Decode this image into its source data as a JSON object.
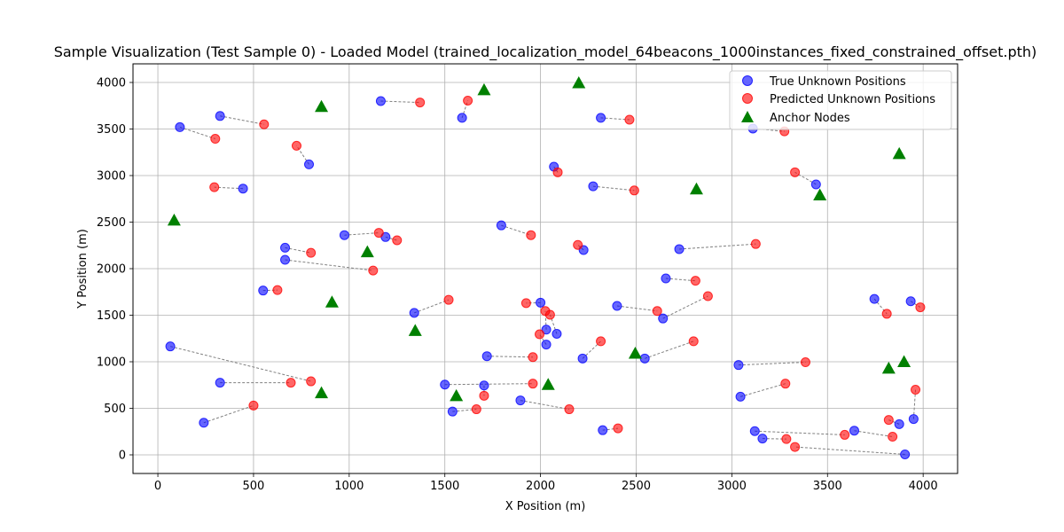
{
  "chart_data": {
    "type": "scatter",
    "title": "Sample Visualization (Test Sample 0) - Loaded Model (trained_localization_model_64beacons_1000instances_fixed_constrained_offset.pth)",
    "xlabel": "X Position (m)",
    "ylabel": "Y Position (m)",
    "xlim": [
      -130,
      4180
    ],
    "ylim": [
      -200,
      4200
    ],
    "xticks": [
      0,
      500,
      1000,
      1500,
      2000,
      2500,
      3000,
      3500,
      4000
    ],
    "yticks": [
      0,
      500,
      1000,
      1500,
      2000,
      2500,
      3000,
      3500,
      4000
    ],
    "grid": true,
    "legend_position": "top-right",
    "colors": {
      "true": "#0000ff",
      "pred": "#ff0000",
      "anchor": "#008000",
      "connector": "#808080"
    },
    "series": [
      {
        "name": "True Unknown Positions",
        "marker": "circle",
        "points": [
          [
            325,
            3640
          ],
          [
            115,
            3520
          ],
          [
            790,
            3120
          ],
          [
            445,
            2860
          ],
          [
            975,
            2360
          ],
          [
            1190,
            2340
          ],
          [
            665,
            2225
          ],
          [
            665,
            2095
          ],
          [
            550,
            1765
          ],
          [
            1340,
            1525
          ],
          [
            65,
            1165
          ],
          [
            325,
            775
          ],
          [
            240,
            345
          ],
          [
            1165,
            3800
          ],
          [
            1590,
            3620
          ],
          [
            2070,
            3095
          ],
          [
            2275,
            2885
          ],
          [
            2315,
            3620
          ],
          [
            1795,
            2465
          ],
          [
            2225,
            2200
          ],
          [
            2725,
            2210
          ],
          [
            2655,
            1895
          ],
          [
            2400,
            1600
          ],
          [
            2640,
            1465
          ],
          [
            2000,
            1635
          ],
          [
            2030,
            1345
          ],
          [
            2085,
            1300
          ],
          [
            2030,
            1185
          ],
          [
            1720,
            1060
          ],
          [
            2220,
            1035
          ],
          [
            2545,
            1035
          ],
          [
            1500,
            755
          ],
          [
            1705,
            745
          ],
          [
            1540,
            465
          ],
          [
            1895,
            585
          ],
          [
            2325,
            265
          ],
          [
            3035,
            965
          ],
          [
            3045,
            625
          ],
          [
            3110,
            3505
          ],
          [
            3440,
            2905
          ],
          [
            3745,
            1675
          ],
          [
            3935,
            1650
          ],
          [
            3950,
            385
          ],
          [
            3875,
            330
          ],
          [
            3640,
            260
          ],
          [
            3120,
            255
          ],
          [
            3160,
            175
          ],
          [
            3905,
            5
          ]
        ]
      },
      {
        "name": "Predicted Unknown Positions",
        "marker": "circle",
        "points": [
          [
            555,
            3550
          ],
          [
            300,
            3395
          ],
          [
            725,
            3320
          ],
          [
            295,
            2875
          ],
          [
            1155,
            2385
          ],
          [
            1250,
            2305
          ],
          [
            800,
            2170
          ],
          [
            1125,
            1980
          ],
          [
            625,
            1770
          ],
          [
            1520,
            1665
          ],
          [
            800,
            790
          ],
          [
            695,
            775
          ],
          [
            500,
            530
          ],
          [
            1370,
            3785
          ],
          [
            1620,
            3805
          ],
          [
            2090,
            3035
          ],
          [
            2490,
            2840
          ],
          [
            2465,
            3600
          ],
          [
            1950,
            2360
          ],
          [
            2195,
            2255
          ],
          [
            3125,
            2265
          ],
          [
            2810,
            1870
          ],
          [
            2610,
            1545
          ],
          [
            2875,
            1705
          ],
          [
            1925,
            1630
          ],
          [
            2025,
            1545
          ],
          [
            2050,
            1505
          ],
          [
            1995,
            1295
          ],
          [
            1960,
            1050
          ],
          [
            2315,
            1220
          ],
          [
            2800,
            1220
          ],
          [
            1960,
            765
          ],
          [
            1705,
            635
          ],
          [
            1665,
            490
          ],
          [
            2150,
            490
          ],
          [
            2405,
            285
          ],
          [
            3385,
            995
          ],
          [
            3280,
            765
          ],
          [
            3275,
            3475
          ],
          [
            3330,
            3035
          ],
          [
            3810,
            1515
          ],
          [
            3985,
            1585
          ],
          [
            3960,
            700
          ],
          [
            3820,
            375
          ],
          [
            3840,
            195
          ],
          [
            3590,
            215
          ],
          [
            3285,
            170
          ],
          [
            3330,
            85
          ]
        ]
      },
      {
        "name": "Anchor Nodes",
        "marker": "triangle",
        "points": [
          [
            855,
            3740
          ],
          [
            1705,
            3920
          ],
          [
            2200,
            3995
          ],
          [
            2815,
            2855
          ],
          [
            3460,
            2790
          ],
          [
            3875,
            3235
          ],
          [
            85,
            2520
          ],
          [
            1095,
            2180
          ],
          [
            910,
            1640
          ],
          [
            1345,
            1335
          ],
          [
            2495,
            1090
          ],
          [
            2040,
            755
          ],
          [
            1560,
            635
          ],
          [
            855,
            665
          ],
          [
            3900,
            1000
          ],
          [
            3820,
            930
          ]
        ]
      }
    ]
  }
}
